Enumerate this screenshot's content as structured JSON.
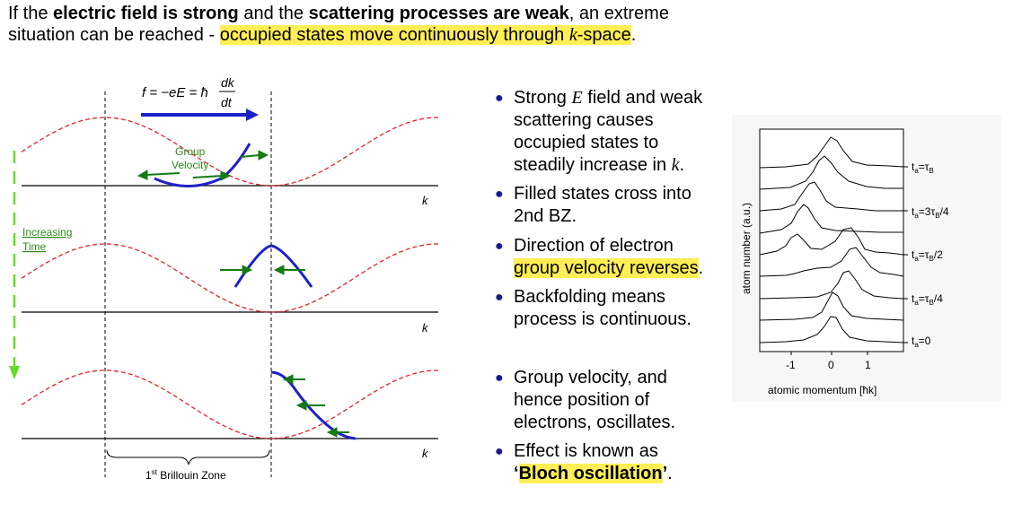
{
  "intro": {
    "p1": "If the ",
    "b1": "electric field is strong",
    "p2": " and the ",
    "b2": "scattering processes are weak",
    "p3": ", an extreme situation can be reached - ",
    "hl1": "occupied states move continuously through ",
    "hl_k": "k",
    "hl2": "-space",
    "p4": "."
  },
  "diagram": {
    "equation": {
      "lhs": "f = −eE = ħ",
      "num": "dk",
      "den": "dt"
    },
    "group_velocity": [
      "Group",
      "Velocity"
    ],
    "increasing_time": [
      "Increasing",
      "Time"
    ],
    "k_label": "k",
    "bz_sup": "st",
    "bz_pre": "1",
    "bz_label": " Brillouin Zone"
  },
  "bullets": [
    {
      "pre": "Strong ",
      "em": "E",
      "post": " field and weak scattering causes occupied states to steadily increase in ",
      "em2": "k",
      "post2": "."
    },
    {
      "text": "Filled states cross into 2nd BZ."
    },
    {
      "pre": "Direction of electron ",
      "hl": "group velocity reverses",
      "post": "."
    },
    {
      "text": "Backfolding means process is continuous."
    },
    {
      "text": "Group velocity, and hence position of electrons, oscillates."
    },
    {
      "pre": "Effect is known as ",
      "q1": "‘",
      "hl": "Bloch oscillation",
      "q2": "’",
      "post": "."
    }
  ],
  "graph": {
    "ylabel": "atom number (a.u.)",
    "xlabel": "atomic momentum [ħk]",
    "xticks": [
      "-1",
      "0",
      "1"
    ],
    "trace_labels": [
      {
        "main": "t",
        "sub": "a",
        "rest": "=τ",
        "sub2": "B",
        "tail": ""
      },
      {
        "main": "t",
        "sub": "a",
        "rest": "=3τ",
        "sub2": "B",
        "tail": "/4"
      },
      {
        "main": "t",
        "sub": "a",
        "rest": "=τ",
        "sub2": "B",
        "tail": "/2"
      },
      {
        "main": "t",
        "sub": "a",
        "rest": "=τ",
        "sub2": "B",
        "tail": "/4"
      },
      {
        "main": "t",
        "sub": "a",
        "rest": "=0",
        "sub2": "",
        "tail": ""
      }
    ]
  },
  "colors": {
    "band": "#e8202a",
    "occupied": "#1c22c8",
    "arrow_green": "#157a12",
    "time_arrow": "#66dd22",
    "highlight": "#ffee55"
  }
}
